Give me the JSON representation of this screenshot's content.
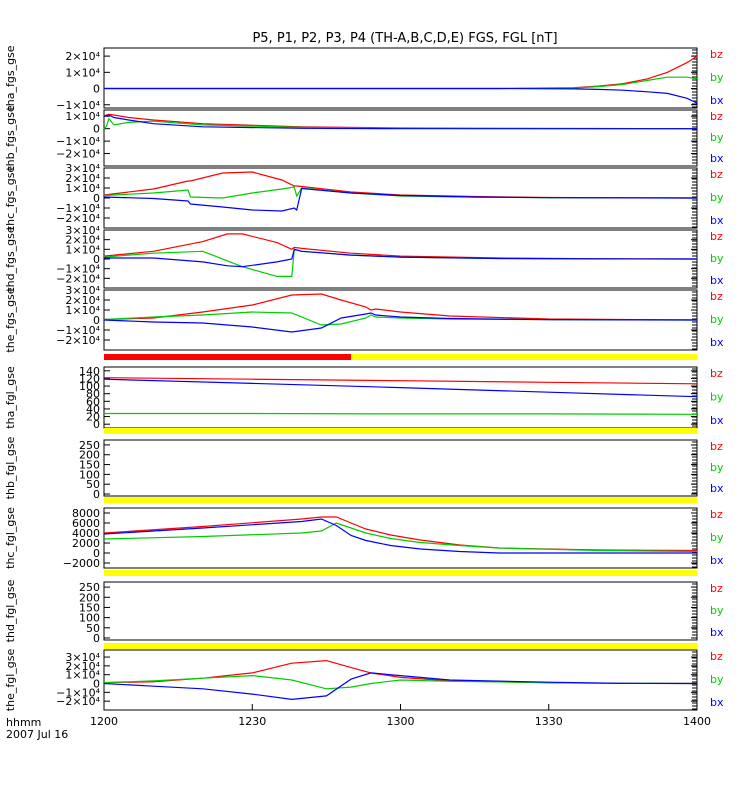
{
  "title": "P5, P1, P2, P3, P4 (TH-A,B,C,D,E) FGS, FGL [nT]",
  "footer": {
    "time_label": "hhmm",
    "date_label": "2007 Jul 16"
  },
  "x_ticks": [
    "1200",
    "1230",
    "1300",
    "1330",
    "1400"
  ],
  "x_range_minutes": [
    0,
    120
  ],
  "x_tick_minutes": [
    0,
    30,
    60,
    90,
    120
  ],
  "colors": {
    "bx": "#0000ff",
    "by": "#00cc00",
    "bz": "#ff0000",
    "flag_yellow": "#ffff00",
    "flag_red": "#ff0000",
    "axis": "#000000"
  },
  "chart_data": [
    {
      "type": "line",
      "panel": "tha_fgs_gse",
      "ylabel": "tha_fgs_gse",
      "ylim": [
        -12000,
        25000
      ],
      "yticks": [
        "2×10⁴",
        "1×10⁴",
        "0",
        "−1×10⁴"
      ],
      "ytick_values": [
        20000,
        10000,
        0,
        -10000
      ],
      "legend": [
        "bz",
        "by",
        "bx"
      ],
      "x": [
        0,
        20,
        40,
        60,
        80,
        95,
        100,
        105,
        110,
        114,
        118,
        120
      ],
      "series": [
        {
          "name": "bz",
          "values": [
            0,
            0,
            0,
            0,
            0,
            500,
            1500,
            3000,
            6000,
            10000,
            16000,
            20000
          ]
        },
        {
          "name": "by",
          "values": [
            0,
            0,
            0,
            0,
            0,
            300,
            1200,
            2500,
            5000,
            7000,
            7000,
            6000
          ]
        },
        {
          "name": "bx",
          "values": [
            0,
            0,
            0,
            0,
            0,
            -200,
            -500,
            -1000,
            -2000,
            -3000,
            -6000,
            -9000
          ]
        }
      ]
    },
    {
      "type": "line",
      "panel": "thb_fgs_gse",
      "ylabel": "thb_fgs_gse",
      "ylim": [
        -30000,
        15000
      ],
      "yticks": [
        "1×10⁴",
        "0",
        "−1×10⁴",
        "−2×10⁴"
      ],
      "ytick_values": [
        10000,
        0,
        -10000,
        -20000
      ],
      "legend": [
        "bz",
        "by",
        "bx"
      ],
      "x": [
        0,
        0.5,
        1,
        2,
        5,
        10,
        20,
        40,
        60,
        80,
        100,
        120
      ],
      "series": [
        {
          "name": "bz",
          "values": [
            10000,
            11000,
            11500,
            11000,
            9000,
            7000,
            4000,
            1500,
            500,
            200,
            100,
            0
          ]
        },
        {
          "name": "by",
          "values": [
            0,
            2000,
            8000,
            3000,
            5000,
            6000,
            3000,
            1000,
            300,
            100,
            0,
            0
          ]
        },
        {
          "name": "bx",
          "values": [
            10000,
            10500,
            11000,
            9000,
            7000,
            4000,
            1500,
            300,
            0,
            0,
            0,
            0
          ]
        }
      ]
    },
    {
      "type": "line",
      "panel": "thc_fgs_gse",
      "ylabel": "thc_fgs_gse",
      "ylim": [
        -30000,
        30000
      ],
      "yticks": [
        "3×10⁴",
        "2×10⁴",
        "1×10⁴",
        "0",
        "−1×10⁴",
        "−2×10⁴"
      ],
      "ytick_values": [
        30000,
        20000,
        10000,
        0,
        -10000,
        -20000
      ],
      "legend": [
        "bz",
        "by",
        "bx"
      ],
      "x": [
        0,
        10,
        17,
        17.5,
        24,
        30,
        36,
        38.5,
        39,
        40,
        50,
        60,
        75,
        90,
        120
      ],
      "series": [
        {
          "name": "bz",
          "values": [
            3000,
            9000,
            17000,
            17000,
            25000,
            26000,
            18000,
            12000,
            12000,
            11500,
            6000,
            3000,
            1500,
            500,
            0
          ]
        },
        {
          "name": "by",
          "values": [
            2500,
            5000,
            8000,
            1000,
            0,
            5000,
            9000,
            11000,
            2000,
            10000,
            5000,
            2000,
            800,
            300,
            0
          ]
        },
        {
          "name": "bx",
          "values": [
            1000,
            -500,
            -3000,
            -6000,
            -9000,
            -12000,
            -13000,
            -10000,
            -12000,
            9500,
            5000,
            2500,
            1000,
            300,
            0
          ]
        }
      ]
    },
    {
      "type": "line",
      "panel": "thd_fgs_gse",
      "ylabel": "thd_fgs_gse",
      "ylim": [
        -30000,
        30000
      ],
      "yticks": [
        "3×10⁴",
        "2×10⁴",
        "1×10⁴",
        "0",
        "−1×10⁴",
        "−2×10⁴"
      ],
      "ytick_values": [
        30000,
        20000,
        10000,
        0,
        -10000,
        -20000
      ],
      "legend": [
        "bz",
        "by",
        "bx"
      ],
      "x": [
        0,
        10,
        20,
        25,
        28,
        35,
        38,
        38.5,
        40,
        50,
        60,
        80,
        100,
        120
      ],
      "series": [
        {
          "name": "bz",
          "values": [
            3000,
            8000,
            18000,
            26000,
            26000,
            17000,
            10000,
            12000,
            11000,
            6000,
            3000,
            1000,
            300,
            0
          ]
        },
        {
          "name": "by",
          "values": [
            2000,
            6000,
            8000,
            -2000,
            -8000,
            -18000,
            -18000,
            10000,
            8000,
            4000,
            2000,
            500,
            100,
            0
          ]
        },
        {
          "name": "bx",
          "values": [
            1000,
            1000,
            -3000,
            -7000,
            -8000,
            -3000,
            0,
            10000,
            8000,
            4000,
            2000,
            500,
            100,
            0
          ]
        }
      ]
    },
    {
      "type": "line",
      "panel": "the_fgs_gse",
      "ylabel": "the_fgs_gse",
      "ylim": [
        -30000,
        30000
      ],
      "yticks": [
        "3×10⁴",
        "2×10⁴",
        "1×10⁴",
        "0",
        "−1×10⁴",
        "−2×10⁴"
      ],
      "ytick_values": [
        30000,
        20000,
        10000,
        0,
        -10000,
        -20000
      ],
      "legend": [
        "bz",
        "by",
        "bx"
      ],
      "x": [
        0,
        10,
        20,
        30,
        38,
        44,
        48,
        53,
        54,
        55,
        60,
        70,
        90,
        120
      ],
      "series": [
        {
          "name": "bz",
          "values": [
            500,
            2000,
            8000,
            15000,
            25000,
            26000,
            20000,
            13000,
            10000,
            11000,
            8000,
            4000,
            1000,
            0
          ]
        },
        {
          "name": "by",
          "values": [
            500,
            3000,
            5000,
            8000,
            7000,
            -5000,
            -4000,
            2000,
            5000,
            3000,
            2000,
            1000,
            300,
            0
          ]
        },
        {
          "name": "bx",
          "values": [
            0,
            -2000,
            -3000,
            -7000,
            -12000,
            -8000,
            2000,
            6000,
            7000,
            5000,
            3000,
            1500,
            300,
            0
          ]
        }
      ]
    },
    {
      "type": "line",
      "panel": "tha_fgl_gse",
      "ylabel": "tha_fgl_gse",
      "ylim": [
        -10,
        150
      ],
      "yticks": [
        "140",
        "120",
        "100",
        "80",
        "60",
        "40",
        "20",
        "0"
      ],
      "ytick_values": [
        140,
        120,
        100,
        80,
        60,
        40,
        20,
        0
      ],
      "legend": [
        "bz",
        "by",
        "bx"
      ],
      "x": [
        0,
        30,
        60,
        90,
        120
      ],
      "series": [
        {
          "name": "bz",
          "values": [
            122,
            118,
            114,
            110,
            106
          ]
        },
        {
          "name": "by",
          "values": [
            28,
            28,
            27,
            27,
            26
          ]
        },
        {
          "name": "bx",
          "values": [
            118,
            107,
            96,
            84,
            72
          ]
        }
      ]
    },
    {
      "type": "line",
      "panel": "thb_fgl_gse",
      "ylabel": "thb_fgl_gse",
      "ylim": [
        -10,
        275
      ],
      "yticks": [
        "250",
        "200",
        "150",
        "100",
        "50",
        "0"
      ],
      "ytick_values": [
        250,
        200,
        150,
        100,
        50,
        0
      ],
      "legend": [
        "bz",
        "by",
        "bx"
      ],
      "x": [],
      "series": []
    },
    {
      "type": "line",
      "panel": "thc_fgl_gse",
      "ylabel": "thc_fgl_gse",
      "ylim": [
        -3000,
        9000
      ],
      "yticks": [
        "8000",
        "6000",
        "4000",
        "2000",
        "0",
        "−2000"
      ],
      "ytick_values": [
        8000,
        6000,
        4000,
        2000,
        0,
        -2000
      ],
      "legend": [
        "bz",
        "by",
        "bx"
      ],
      "x": [
        0,
        20,
        40,
        44,
        47,
        50,
        53,
        58,
        64,
        72,
        80,
        100,
        120
      ],
      "series": [
        {
          "name": "bz",
          "values": [
            4000,
            5300,
            6800,
            7200,
            7200,
            6000,
            4800,
            3600,
            2600,
            1600,
            1000,
            600,
            500
          ]
        },
        {
          "name": "by",
          "values": [
            2800,
            3300,
            4000,
            4400,
            6000,
            5000,
            4000,
            2900,
            2100,
            1500,
            1000,
            500,
            300
          ]
        },
        {
          "name": "bx",
          "values": [
            3800,
            5000,
            6300,
            6800,
            5500,
            3500,
            2500,
            1500,
            800,
            300,
            0,
            0,
            0
          ]
        }
      ]
    },
    {
      "type": "line",
      "panel": "thd_fgl_gse",
      "ylabel": "thd_fgl_gse",
      "ylim": [
        -10,
        275
      ],
      "yticks": [
        "250",
        "200",
        "150",
        "100",
        "50",
        "0"
      ],
      "ytick_values": [
        250,
        200,
        150,
        100,
        50,
        0
      ],
      "legend": [
        "bz",
        "by",
        "bx"
      ],
      "x": [],
      "series": []
    },
    {
      "type": "line",
      "panel": "the_fgl_gse",
      "ylabel": "the_fgl_gse",
      "ylim": [
        -30000,
        38000
      ],
      "yticks": [
        "3×10⁴",
        "2×10⁴",
        "1×10⁴",
        "0",
        "−1×10⁴",
        "−2×10⁴"
      ],
      "ytick_values": [
        30000,
        20000,
        10000,
        0,
        -10000,
        -20000
      ],
      "legend": [
        "bz",
        "by",
        "bx"
      ],
      "x": [
        0,
        10,
        20,
        30,
        38,
        45,
        50,
        54,
        60,
        70,
        90,
        105,
        120
      ],
      "series": [
        {
          "name": "bz",
          "values": [
            1000,
            2000,
            6000,
            12000,
            23000,
            26000,
            18000,
            12000,
            7000,
            3000,
            800,
            200,
            0
          ]
        },
        {
          "name": "by",
          "values": [
            1000,
            3000,
            6000,
            9000,
            4000,
            -6000,
            -4000,
            0,
            4000,
            2500,
            1000,
            300,
            0
          ]
        },
        {
          "name": "bx",
          "values": [
            0,
            -3000,
            -6000,
            -12000,
            -18000,
            -14000,
            5000,
            12000,
            9000,
            4000,
            1500,
            300,
            0
          ]
        }
      ]
    }
  ],
  "flag_bars": [
    {
      "after_panel": 4,
      "segments": [
        {
          "from": 0,
          "to": 50,
          "color": "red"
        },
        {
          "from": 50,
          "to": 120,
          "color": "yellow"
        }
      ]
    },
    {
      "after_panel": 5,
      "segments": [
        {
          "from": 0,
          "to": 120,
          "color": "yellow"
        }
      ]
    },
    {
      "after_panel": 6,
      "segments": [
        {
          "from": 0,
          "to": 120,
          "color": "yellow"
        }
      ]
    },
    {
      "after_panel": 7,
      "segments": [
        {
          "from": 0,
          "to": 120,
          "color": "yellow"
        }
      ]
    },
    {
      "after_panel": 8,
      "segments": [
        {
          "from": 0,
          "to": 120,
          "color": "yellow"
        }
      ]
    }
  ]
}
